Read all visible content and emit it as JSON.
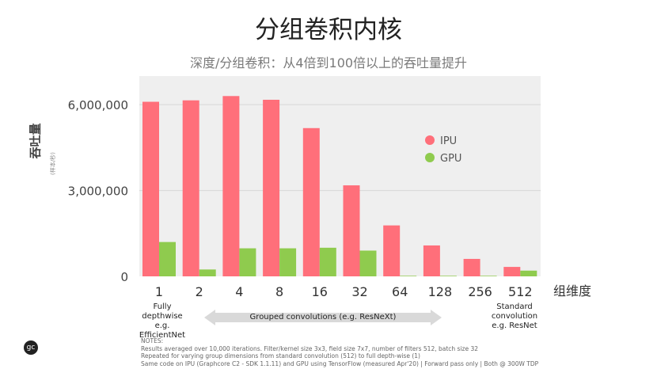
{
  "title": "分组卷积内核",
  "subtitle": "深度/分组卷积：从4倍到100倍以上的吞吐量提升",
  "ylabel": "吞吐量",
  "ylabel_unit": "(样本/秒)",
  "xlabel": "组维度",
  "left_note": [
    "Fully",
    "depthwise",
    "e.g. EfficientNet"
  ],
  "right_note": [
    "Standard",
    "convolution",
    "e.g. ResNet"
  ],
  "group_label": "Grouped convolutions (e.g. ResNeXt)",
  "notes": [
    "NOTES:",
    "Results averaged over 10,000 iterations. Filter/kernel size 3x3, field size 7x7, number of filters 512, batch size 32",
    "Repeated for varying group dimensions from standard convolution (512) to full depth-wise (1)",
    "Same code on IPU (Graphcore C2 - SDK 1.1.11) and GPU using TensorFlow (measured Apr'20) | Forward pass only | Both @ 300W TDP"
  ],
  "logo_text": "gc",
  "chart_data": {
    "type": "bar",
    "categories": [
      "1",
      "2",
      "4",
      "8",
      "16",
      "32",
      "64",
      "128",
      "256",
      "512"
    ],
    "series": [
      {
        "name": "IPU",
        "color": "#ff6f7a",
        "values": [
          6100000,
          6150000,
          6300000,
          6170000,
          5180000,
          3180000,
          1780000,
          1080000,
          610000,
          330000
        ]
      },
      {
        "name": "GPU",
        "color": "#8fcb4e",
        "values": [
          1200000,
          240000,
          980000,
          980000,
          1000000,
          900000,
          20000,
          20000,
          20000,
          200000
        ]
      }
    ],
    "yticks": [
      "0",
      "3,000,000",
      "6,000,000"
    ],
    "ytick_values": [
      0,
      3000000,
      6000000
    ],
    "ylim": [
      0,
      7000000
    ],
    "legend_position": "top-right",
    "grid": true,
    "background": "#efefef"
  }
}
